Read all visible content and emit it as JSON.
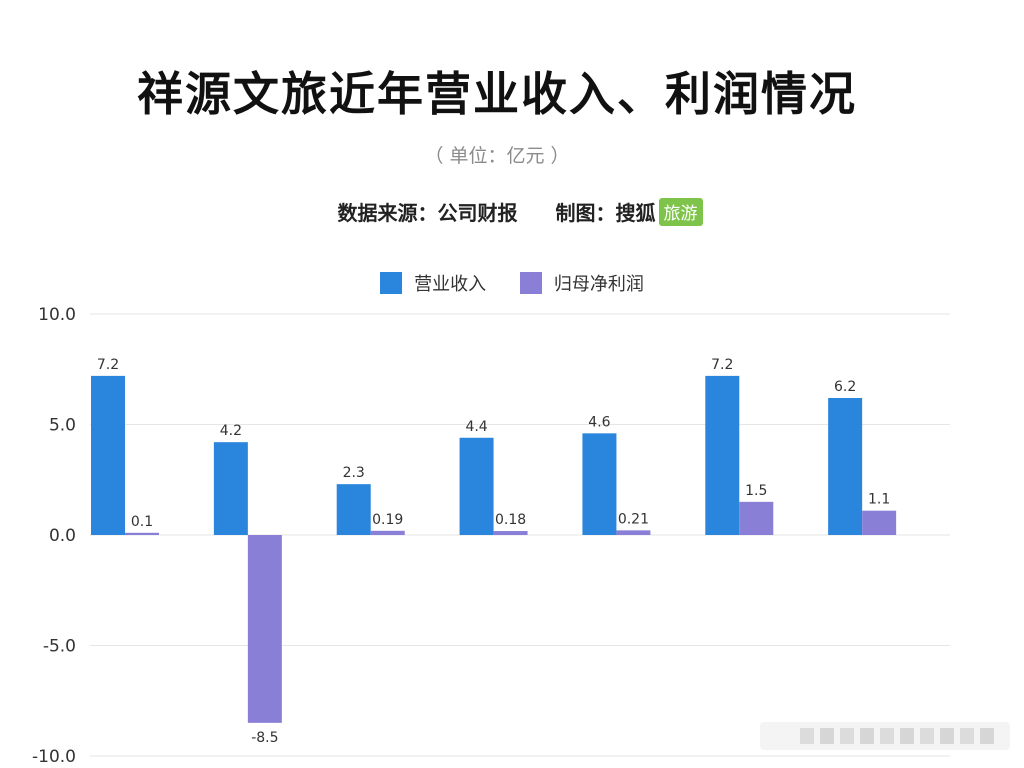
{
  "header": {
    "title": "祥源文旅近年营业收入、利润情况",
    "unit": "（ 单位：亿元 ）",
    "source_label": "数据来源：公司财报",
    "credit_label": "制图：",
    "credit_name": "搜狐",
    "credit_tag": "旅游"
  },
  "colors": {
    "revenue": "#2a85dd",
    "profit": "#8a7fd6",
    "grid": "#e6e6e6",
    "tag": "#7ec44a"
  },
  "chart_data": {
    "type": "bar",
    "title": "祥源文旅近年营业收入、利润情况",
    "unit": "亿元",
    "categories": [
      "",
      "",
      "",
      "",
      "",
      "",
      ""
    ],
    "series": [
      {
        "name": "营业收入",
        "values": [
          7.2,
          4.2,
          2.3,
          4.4,
          4.6,
          7.2,
          6.2
        ],
        "labels": [
          "7.2",
          "4.2",
          "2.3",
          "4.4",
          "4.6",
          "7.2",
          "6.2"
        ]
      },
      {
        "name": "归母净利润",
        "values": [
          0.1,
          -8.5,
          0.19,
          0.18,
          0.21,
          1.5,
          1.1
        ],
        "labels": [
          "0.1",
          "-8.5",
          "0.19",
          "0.18",
          "0.21",
          "1.5",
          "1.1"
        ]
      }
    ],
    "ylim": [
      -10,
      10
    ],
    "yticks": [
      10,
      5,
      0,
      -5,
      -10
    ],
    "ytick_labels": [
      "10.0",
      "5.0",
      "0.0",
      "-5.0",
      "-10.0"
    ],
    "grid": true,
    "legend": "top-center"
  }
}
